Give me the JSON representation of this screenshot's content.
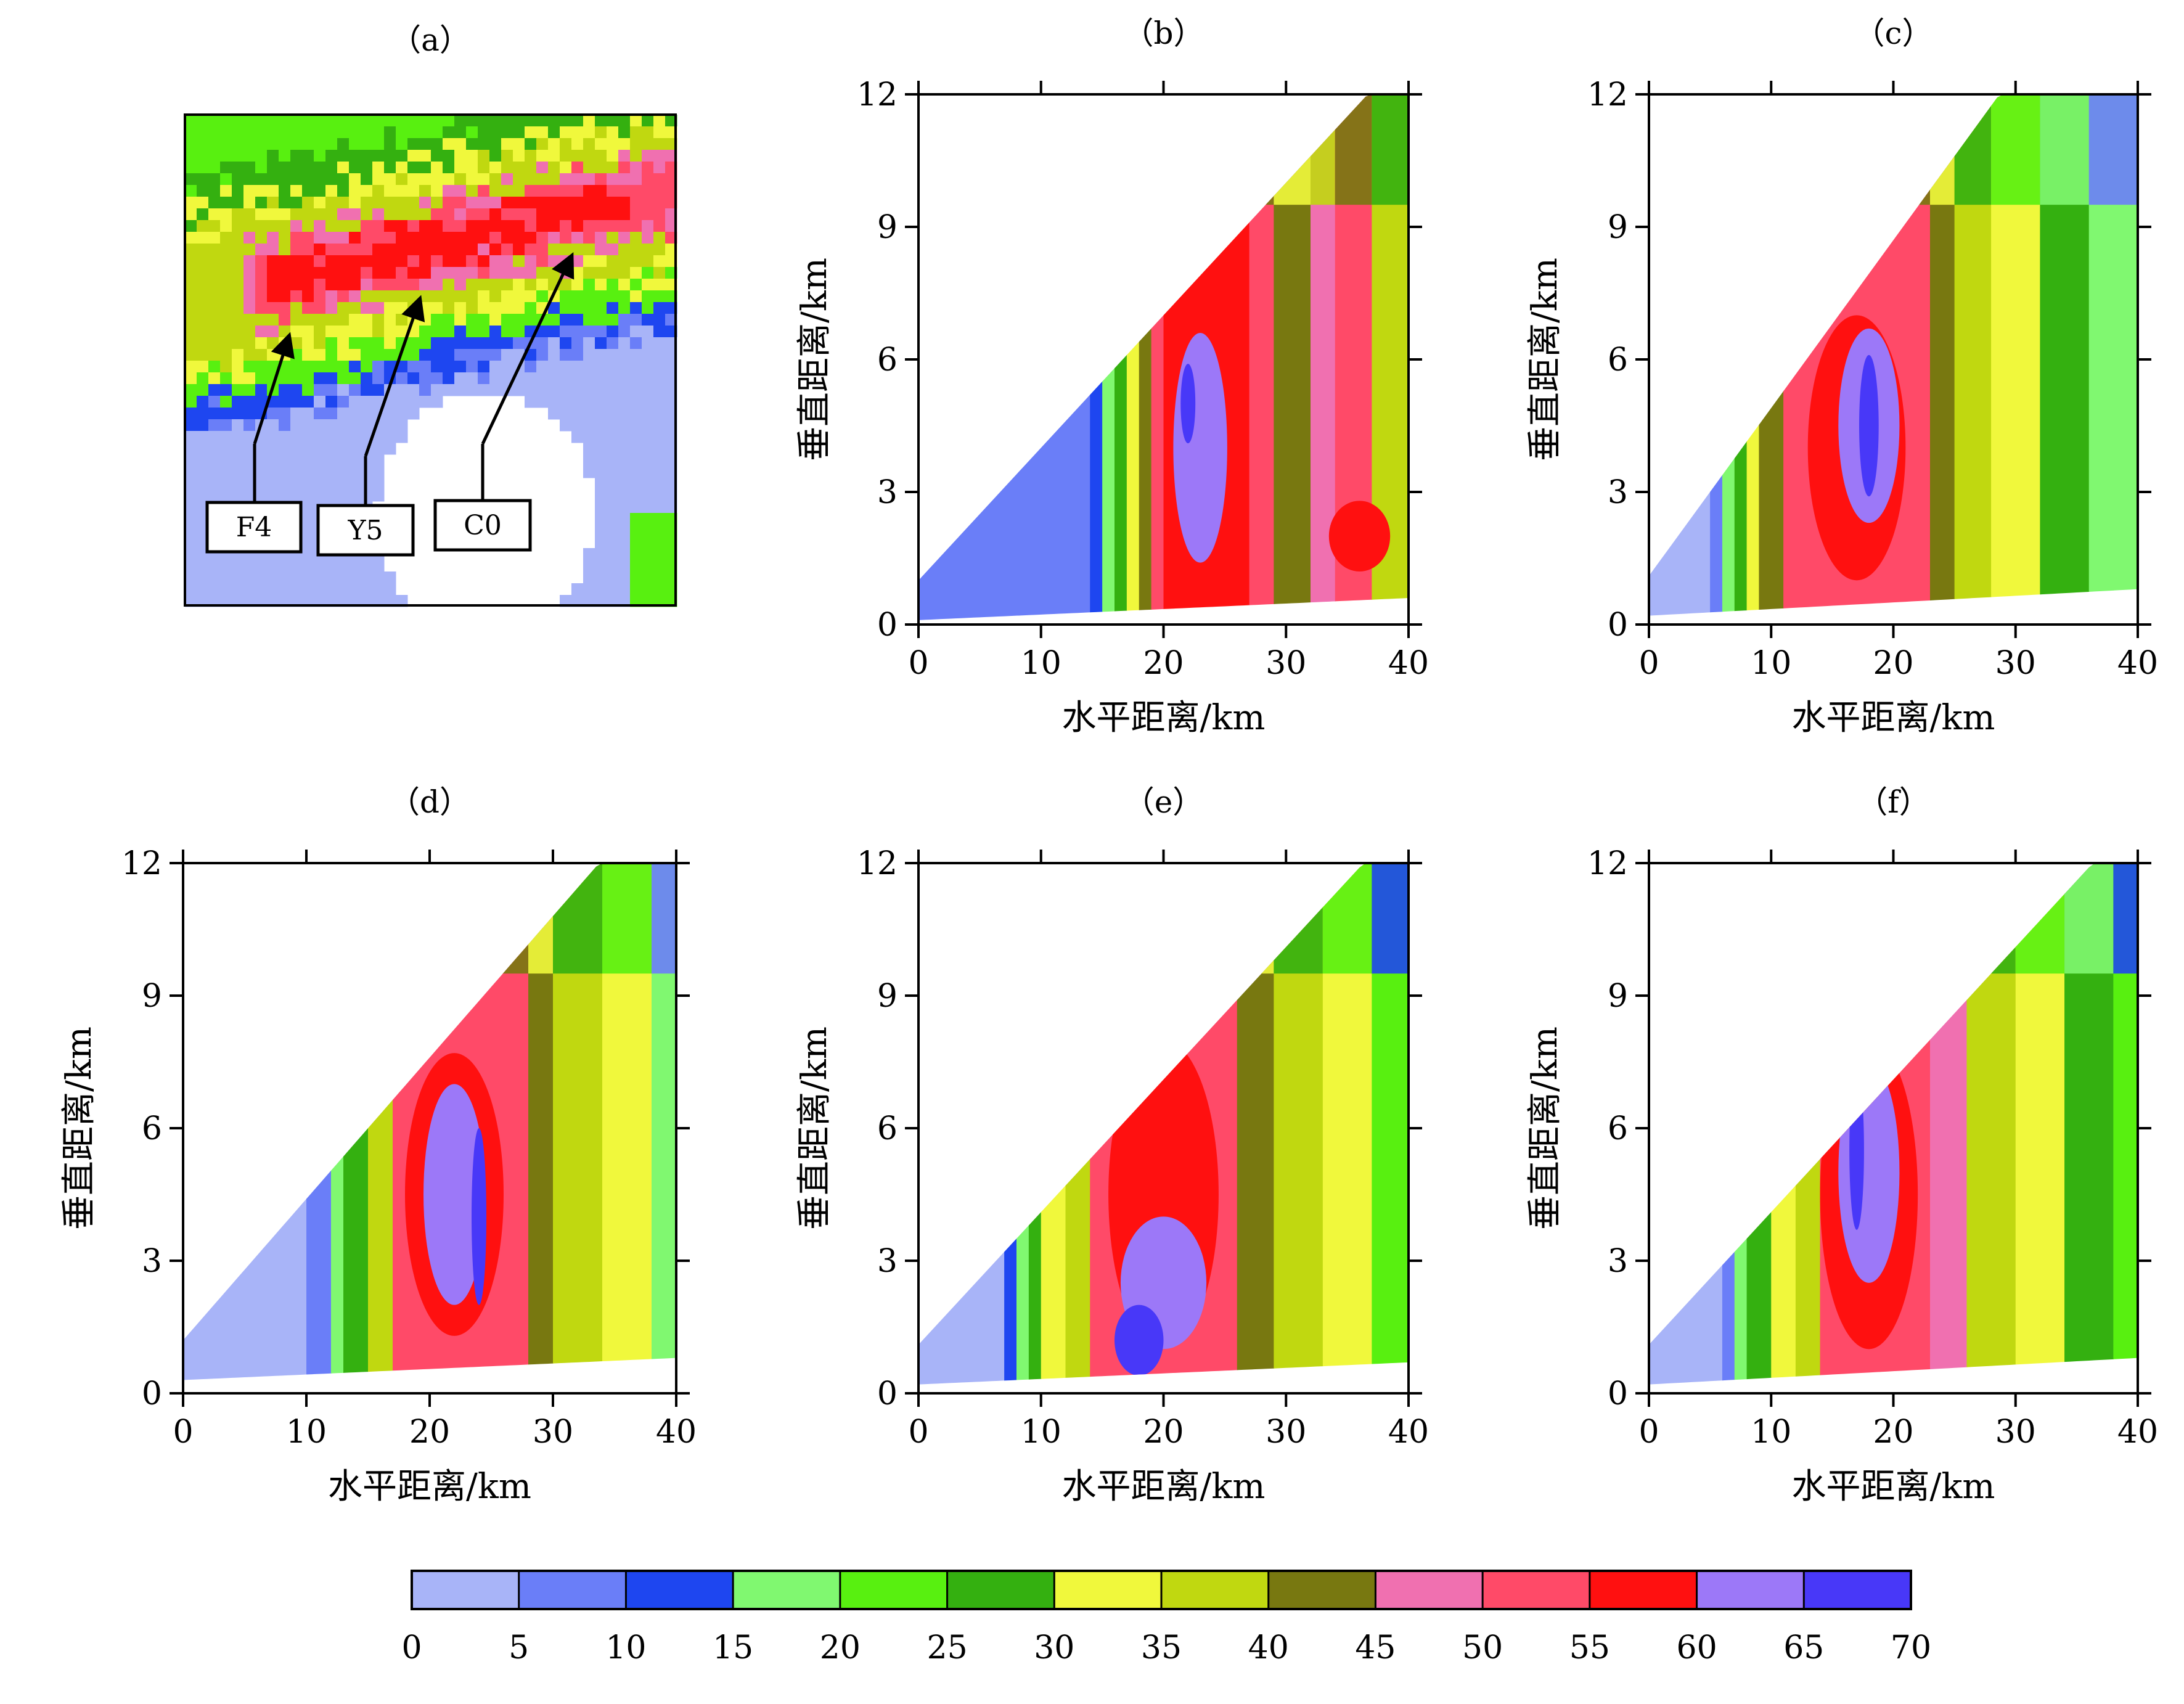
{
  "panels": [
    {
      "id": "a",
      "label": "（a）",
      "type": "ppi-map",
      "annotations": [
        {
          "label": "F4"
        },
        {
          "label": "Y5"
        },
        {
          "label": "C0"
        }
      ]
    },
    {
      "id": "b",
      "label": "（b）",
      "xlabel": "水平距离/km",
      "ylabel": "垂直距离/km",
      "xlim": [
        0,
        40
      ],
      "ylim": [
        0,
        12
      ],
      "xticks": [
        0,
        10,
        20,
        30,
        40
      ],
      "yticks": [
        0,
        3,
        6,
        9,
        12
      ],
      "top_slope_km_per_km": 0.3,
      "x_start_top": 0,
      "ground": [
        0.1,
        0.6
      ],
      "bands": [
        [
          0,
          14,
          1
        ],
        [
          14,
          15,
          2
        ],
        [
          15,
          16,
          3
        ],
        [
          16,
          17,
          5
        ],
        [
          17,
          18,
          6
        ],
        [
          18,
          19,
          8
        ],
        [
          19,
          20,
          10
        ],
        [
          20,
          21,
          11
        ],
        [
          21,
          27,
          11
        ],
        [
          27,
          29,
          10
        ],
        [
          29,
          32,
          8
        ],
        [
          32,
          34,
          9
        ],
        [
          34,
          37,
          10
        ],
        [
          37,
          40,
          7
        ]
      ],
      "cores": [
        [
          23,
          4.0,
          2.2,
          2.6,
          12
        ],
        [
          22,
          5.0,
          0.6,
          0.9,
          13
        ],
        [
          36,
          2.0,
          2.5,
          0.8,
          11
        ]
      ]
    },
    {
      "id": "c",
      "label": "（c）",
      "xlabel": "水平距离/km",
      "ylabel": "垂直距离/km",
      "xlim": [
        0,
        40
      ],
      "ylim": [
        0,
        12
      ],
      "xticks": [
        0,
        10,
        20,
        30,
        40
      ],
      "yticks": [
        0,
        3,
        6,
        9,
        12
      ],
      "top_slope_km_per_km": 0.38,
      "x_start_top": 0,
      "ground": [
        0.2,
        0.8
      ],
      "bands": [
        [
          0,
          5,
          0
        ],
        [
          5,
          6,
          1
        ],
        [
          6,
          7,
          3
        ],
        [
          7,
          8,
          5
        ],
        [
          8,
          9,
          6
        ],
        [
          9,
          11,
          8
        ],
        [
          11,
          23,
          10
        ],
        [
          23,
          25,
          8
        ],
        [
          25,
          28,
          7
        ],
        [
          28,
          32,
          6
        ],
        [
          32,
          36,
          5
        ],
        [
          36,
          40,
          3
        ]
      ],
      "cores": [
        [
          17,
          4.0,
          4.0,
          3.0,
          11
        ],
        [
          18,
          4.5,
          2.5,
          2.2,
          12
        ],
        [
          18,
          4.5,
          0.8,
          1.6,
          13
        ]
      ]
    },
    {
      "id": "d",
      "label": "（d）",
      "xlabel": "水平距离/km",
      "ylabel": "垂直距离/km",
      "xlim": [
        0,
        40
      ],
      "ylim": [
        0,
        12
      ],
      "xticks": [
        0,
        10,
        20,
        30,
        40
      ],
      "yticks": [
        0,
        3,
        6,
        9,
        12
      ],
      "top_slope_km_per_km": 0.32,
      "x_start_top": 0,
      "ground": [
        0.3,
        0.8
      ],
      "bands": [
        [
          0,
          10,
          0
        ],
        [
          10,
          12,
          1
        ],
        [
          12,
          13,
          3
        ],
        [
          13,
          15,
          5
        ],
        [
          15,
          17,
          7
        ],
        [
          17,
          28,
          10
        ],
        [
          28,
          30,
          8
        ],
        [
          30,
          34,
          7
        ],
        [
          34,
          38,
          6
        ],
        [
          38,
          40,
          3
        ]
      ],
      "cores": [
        [
          22,
          4.5,
          4.0,
          3.2,
          11
        ],
        [
          22,
          4.5,
          2.5,
          2.5,
          12
        ],
        [
          24,
          4.0,
          0.6,
          2.0,
          13
        ]
      ]
    },
    {
      "id": "e",
      "label": "（e）",
      "xlabel": "水平距离/km",
      "ylabel": "垂直距离/km",
      "xlim": [
        0,
        40
      ],
      "ylim": [
        0,
        12
      ],
      "xticks": [
        0,
        10,
        20,
        30,
        40
      ],
      "yticks": [
        0,
        3,
        6,
        9,
        12
      ],
      "top_slope_km_per_km": 0.3,
      "x_start_top": 0,
      "ground": [
        0.2,
        0.7
      ],
      "bands": [
        [
          0,
          7,
          0
        ],
        [
          7,
          8,
          2
        ],
        [
          8,
          9,
          3
        ],
        [
          9,
          10,
          5
        ],
        [
          10,
          12,
          6
        ],
        [
          12,
          14,
          7
        ],
        [
          14,
          26,
          10
        ],
        [
          26,
          29,
          8
        ],
        [
          29,
          33,
          7
        ],
        [
          33,
          37,
          6
        ],
        [
          37,
          40,
          4
        ]
      ],
      "cores": [
        [
          20,
          4.5,
          4.5,
          3.5,
          11
        ],
        [
          20,
          2.5,
          3.5,
          1.5,
          12
        ],
        [
          18,
          1.2,
          2.0,
          0.8,
          13
        ]
      ]
    },
    {
      "id": "f",
      "label": "（f）",
      "xlabel": "水平距离/km",
      "ylabel": "垂直距离/km",
      "xlim": [
        0,
        40
      ],
      "ylim": [
        0,
        12
      ],
      "xticks": [
        0,
        10,
        20,
        30,
        40
      ],
      "yticks": [
        0,
        3,
        6,
        9,
        12
      ],
      "top_slope_km_per_km": 0.3,
      "x_start_top": 0,
      "ground": [
        0.2,
        0.8
      ],
      "bands": [
        [
          0,
          6,
          0
        ],
        [
          6,
          7,
          1
        ],
        [
          7,
          8,
          3
        ],
        [
          8,
          10,
          5
        ],
        [
          10,
          12,
          6
        ],
        [
          12,
          14,
          7
        ],
        [
          14,
          23,
          10
        ],
        [
          23,
          26,
          9
        ],
        [
          26,
          30,
          7
        ],
        [
          30,
          34,
          6
        ],
        [
          34,
          38,
          5
        ],
        [
          38,
          40,
          4
        ]
      ],
      "cores": [
        [
          18,
          4.5,
          4.0,
          3.5,
          11
        ],
        [
          18,
          5.0,
          2.5,
          2.5,
          12
        ],
        [
          17,
          5.5,
          0.6,
          1.8,
          13
        ]
      ]
    }
  ],
  "colorbar": {
    "ticks": [
      "0",
      "5",
      "10",
      "15",
      "20",
      "25",
      "30",
      "35",
      "40",
      "45",
      "50",
      "55",
      "60",
      "65",
      "70"
    ],
    "colors": [
      "#a8b4f8",
      "#6a7ef8",
      "#1e46f0",
      "#80f870",
      "#58f010",
      "#34b010",
      "#f0f83c",
      "#c0d810",
      "#787810",
      "#f070b0",
      "#ff4a68",
      "#ff1010",
      "#9c78f8",
      "#4838f8"
    ]
  }
}
